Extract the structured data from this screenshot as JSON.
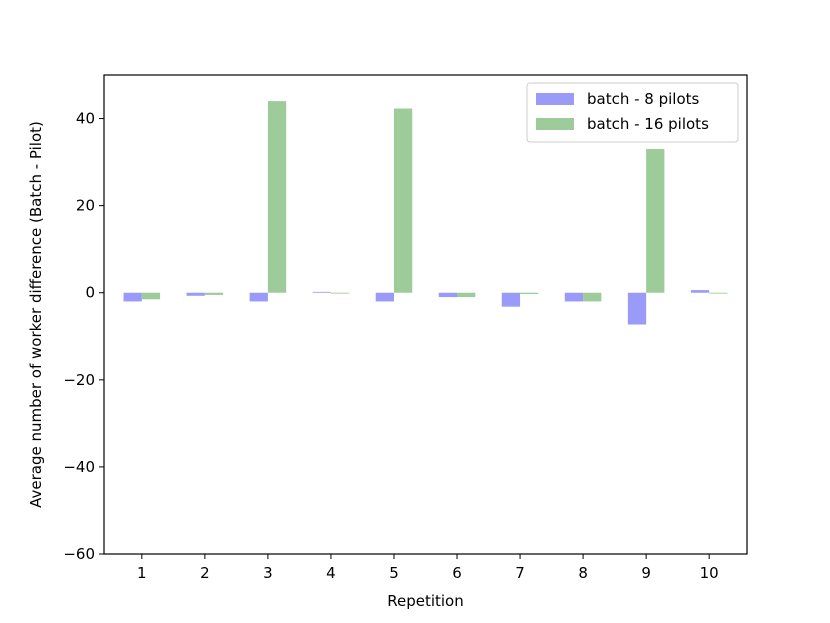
{
  "chart_data": {
    "type": "bar",
    "title": "",
    "xlabel": "Repetition",
    "ylabel": "Average number of worker difference (Batch - Pilot)",
    "categories": [
      "1",
      "2",
      "3",
      "4",
      "5",
      "6",
      "7",
      "8",
      "9",
      "10"
    ],
    "ylim": [
      -60,
      50
    ],
    "yticks": [
      -60,
      -40,
      -20,
      0,
      20,
      40
    ],
    "ytick_labels": [
      "−60",
      "−40",
      "−20",
      "0",
      "20",
      "40"
    ],
    "grid": false,
    "legend_position": "top-right",
    "series": [
      {
        "name": "batch - 8 pilots",
        "color": "#9a9af8",
        "values": [
          -2.0,
          -0.7,
          -2.0,
          0.2,
          -2.0,
          -1.0,
          -3.2,
          -2.0,
          -7.3,
          0.6
        ]
      },
      {
        "name": "batch - 16 pilots",
        "color": "#9dcc9a",
        "values": [
          -1.5,
          -0.5,
          44.0,
          -0.2,
          42.3,
          -1.0,
          -0.3,
          -2.0,
          33.0,
          -0.2
        ]
      }
    ]
  }
}
